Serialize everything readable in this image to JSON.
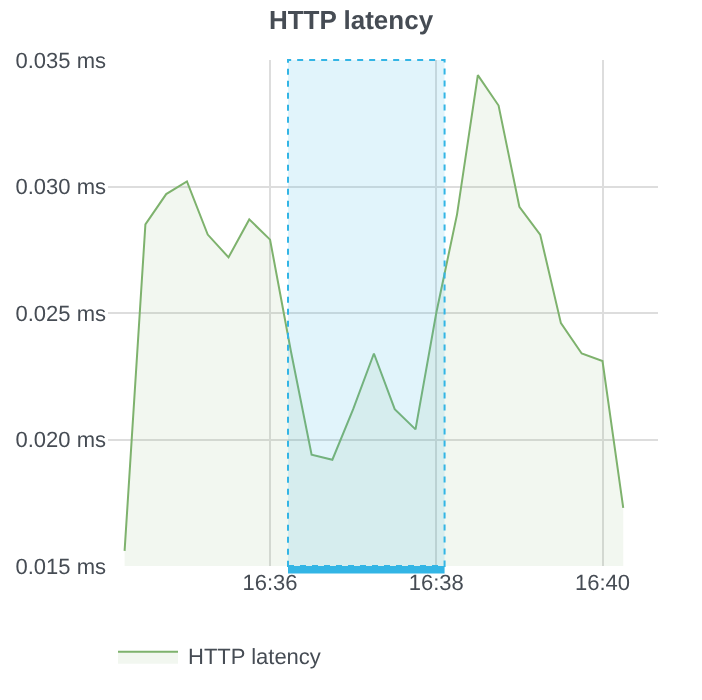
{
  "chart_data": {
    "type": "area",
    "title": "HTTP latency",
    "x": [
      16.57083,
      16.575,
      16.57917,
      16.58333,
      16.5875,
      16.59167,
      16.59583,
      16.6,
      16.60417,
      16.60833,
      16.6125,
      16.61667,
      16.62083,
      16.625,
      16.62917,
      16.63333,
      16.6375,
      16.64167,
      16.64583,
      16.65,
      16.65417,
      16.65833,
      16.6625,
      16.66667,
      16.67083
    ],
    "series": [
      {
        "name": "HTTP latency",
        "color": "#7eb26d",
        "values": [
          0.0156,
          0.0285,
          0.0297,
          0.0302,
          0.0281,
          0.0272,
          0.0287,
          0.0279,
          0.0235,
          0.0194,
          0.0192,
          0.0212,
          0.0234,
          0.0212,
          0.0204,
          0.025,
          0.0289,
          0.0344,
          0.0332,
          0.0292,
          0.0281,
          0.0246,
          0.0234,
          0.0231,
          0.0173
        ]
      }
    ],
    "xlim": [
      16.5675,
      16.6778
    ],
    "xticks": [
      {
        "value": 16.6,
        "label": "16:36"
      },
      {
        "value": 16.63333,
        "label": "16:38"
      },
      {
        "value": 16.66667,
        "label": "16:40"
      }
    ],
    "ylim": [
      0.015,
      0.035
    ],
    "yticks": [
      {
        "value": 0.015,
        "label": "0.015 ms"
      },
      {
        "value": 0.02,
        "label": "0.020 ms"
      },
      {
        "value": 0.025,
        "label": "0.025 ms"
      },
      {
        "value": 0.03,
        "label": "0.030 ms"
      },
      {
        "value": 0.035,
        "label": "0.035 ms"
      }
    ],
    "bands": [
      {
        "axis": "x",
        "from": 16.6036,
        "to": 16.635,
        "color": "#33b5e5"
      }
    ],
    "grid": true,
    "legend": "bottom left",
    "marker": "none",
    "line_style": "solid"
  }
}
